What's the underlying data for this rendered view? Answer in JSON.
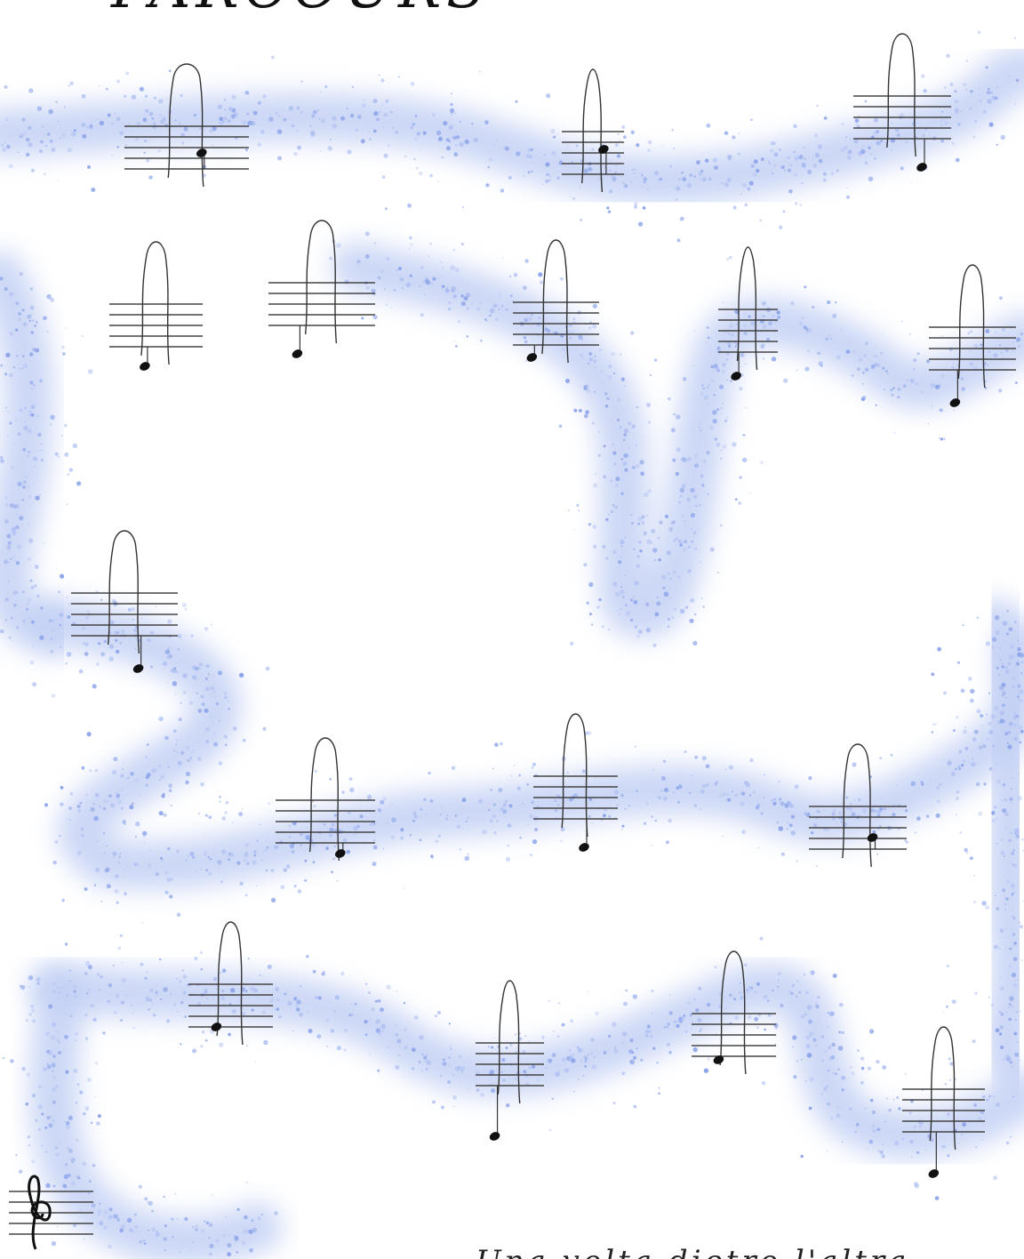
{
  "title": "PARCOURS",
  "footnote": "Una volta dietro l'altra"
}
